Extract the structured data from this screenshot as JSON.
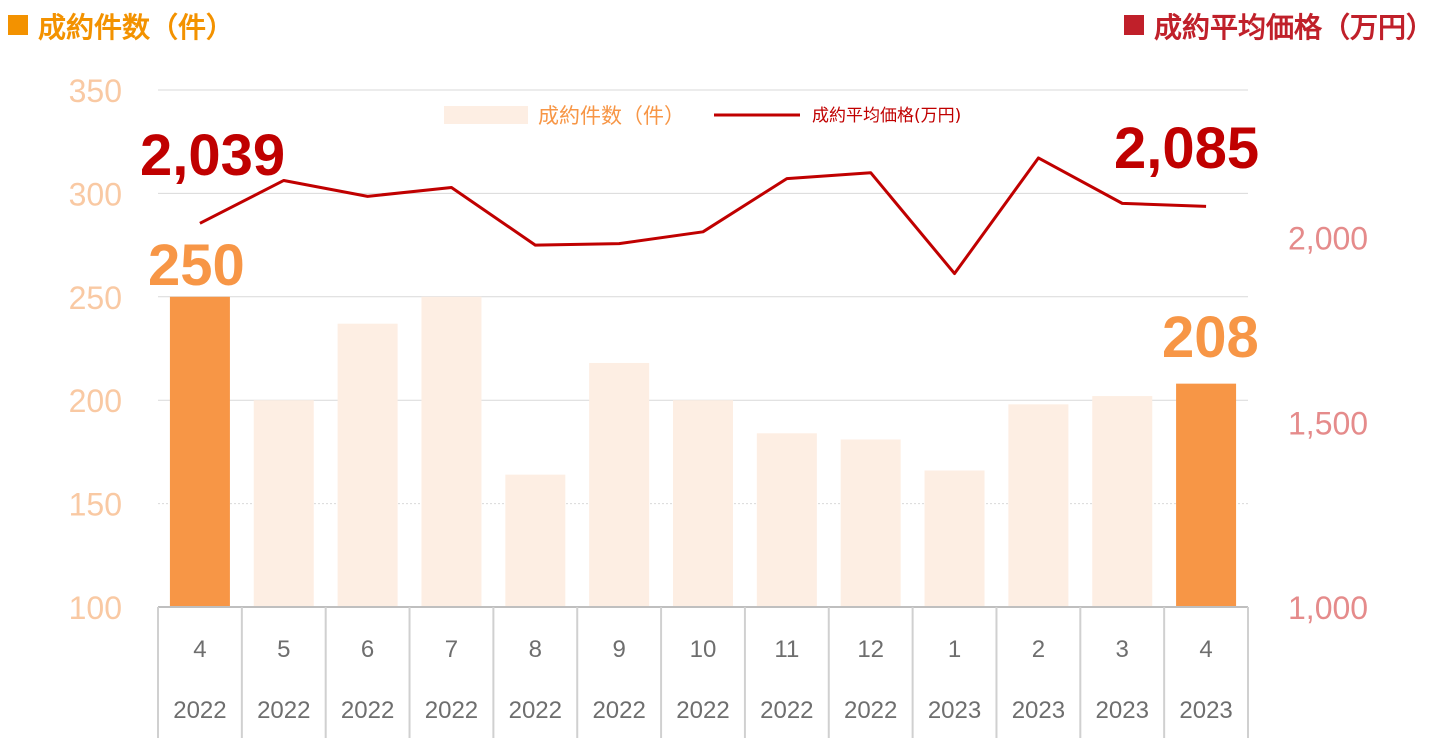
{
  "headers": {
    "left_title": "成約件数（件）",
    "right_title": "成約平均価格（万円）"
  },
  "colors": {
    "bar_highlight": "#F79646",
    "bar_normal": "#FDEEE3",
    "line": "#C00000",
    "left_axis_text": "#F9C9A3",
    "right_axis_text": "#E58B8B",
    "left_header_square": "#F39200",
    "left_header_text": "#F39200",
    "right_header_square": "#C0202A",
    "right_header_text": "#C0202A",
    "category_text": "#6E6E6E"
  },
  "chart_data": {
    "type": "bar",
    "categories": [
      {
        "month": "4",
        "year": "2022"
      },
      {
        "month": "5",
        "year": "2022"
      },
      {
        "month": "6",
        "year": "2022"
      },
      {
        "month": "7",
        "year": "2022"
      },
      {
        "month": "8",
        "year": "2022"
      },
      {
        "month": "9",
        "year": "2022"
      },
      {
        "month": "10",
        "year": "2022"
      },
      {
        "month": "11",
        "year": "2022"
      },
      {
        "month": "12",
        "year": "2022"
      },
      {
        "month": "1",
        "year": "2023"
      },
      {
        "month": "2",
        "year": "2023"
      },
      {
        "month": "3",
        "year": "2023"
      },
      {
        "month": "4",
        "year": "2023"
      }
    ],
    "series": [
      {
        "name": "成約件数（件）",
        "type": "bar",
        "axis": "left",
        "values": [
          250,
          200,
          237,
          250,
          164,
          218,
          200,
          184,
          181,
          166,
          198,
          202,
          208
        ],
        "highlight": [
          true,
          false,
          false,
          false,
          false,
          false,
          false,
          false,
          false,
          false,
          false,
          false,
          true
        ]
      },
      {
        "name": "成約平均価格(万円)",
        "type": "line",
        "axis": "right",
        "values": [
          2039,
          2155,
          2112,
          2136,
          1980,
          1984,
          2016,
          2160,
          2176,
          1903,
          2216,
          2093,
          2085
        ]
      }
    ],
    "left_axis": {
      "ylim": [
        100,
        350
      ],
      "ticks": [
        "100",
        "150",
        "200",
        "250",
        "300",
        "350"
      ]
    },
    "right_axis": {
      "ylim": [
        1000,
        2400
      ],
      "ticks": [
        "1,000",
        "1,500",
        "2,000"
      ]
    },
    "callouts": [
      {
        "text": "2,039",
        "series": "line",
        "index": 0
      },
      {
        "text": "250",
        "series": "bar",
        "index": 0
      },
      {
        "text": "2,085",
        "series": "line",
        "index": 12
      },
      {
        "text": "208",
        "series": "bar",
        "index": 12
      }
    ],
    "legend_position": "top-center",
    "gridlines": true
  }
}
